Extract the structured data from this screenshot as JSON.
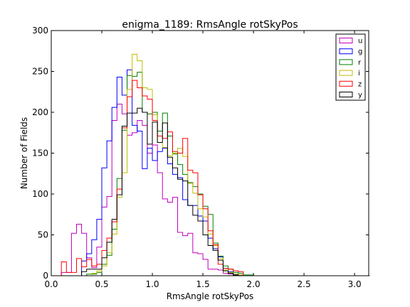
{
  "chart_data": {
    "type": "line",
    "title": "enigma_1189: RmsAngle rotSkyPos",
    "xlabel": "RmsAngle rotSkyPos",
    "ylabel": "Number of Fields",
    "xlim": [
      0.0,
      3.14
    ],
    "ylim": [
      0,
      300
    ],
    "xticks": [
      "0.0",
      "0.5",
      "1.0",
      "1.5",
      "2.0",
      "2.5",
      "3.0"
    ],
    "yticks": [
      "0",
      "50",
      "100",
      "150",
      "200",
      "250",
      "300"
    ],
    "bin_width": 0.05,
    "bin_start": 0.0,
    "legend_position": "top-right",
    "grid": false,
    "series": [
      {
        "name": "u",
        "color": "#bf00bf",
        "values": [
          0,
          0,
          4,
          4,
          52,
          63,
          52,
          22,
          10,
          35,
          84,
          97,
          190,
          210,
          198,
          172,
          175,
          190,
          184,
          150,
          160,
          126,
          94,
          90,
          96,
          53,
          49,
          52,
          28,
          27,
          20,
          8,
          8,
          7,
          3,
          2,
          1,
          1,
          0,
          0,
          0,
          0,
          0,
          0,
          0,
          0,
          0,
          0,
          0,
          0,
          0,
          0,
          0,
          0,
          0,
          0,
          0,
          0,
          0,
          0,
          0,
          0,
          0
        ]
      },
      {
        "name": "g",
        "color": "#0000ff",
        "values": [
          0,
          0,
          0,
          0,
          0,
          0,
          18,
          27,
          44,
          69,
          132,
          165,
          206,
          243,
          221,
          252,
          184,
          177,
          131,
          156,
          141,
          152,
          156,
          137,
          124,
          120,
          93,
          86,
          86,
          73,
          67,
          46,
          33,
          23,
          9,
          5,
          2,
          1,
          0,
          0,
          0,
          0,
          0,
          0,
          0,
          0,
          0,
          0,
          0,
          0,
          0,
          0,
          0,
          0,
          0,
          0,
          0,
          0,
          0,
          0,
          0,
          0,
          0
        ]
      },
      {
        "name": "r",
        "color": "#007f00",
        "values": [
          0,
          0,
          0,
          0,
          0,
          0,
          0,
          2,
          2,
          4,
          14,
          25,
          57,
          119,
          178,
          245,
          244,
          249,
          200,
          198,
          200,
          177,
          199,
          171,
          149,
          136,
          124,
          114,
          109,
          100,
          85,
          75,
          40,
          24,
          12,
          8,
          4,
          3,
          1,
          1,
          0,
          0,
          0,
          0,
          0,
          0,
          0,
          0,
          0,
          0,
          0,
          0,
          0,
          0,
          0,
          0,
          0,
          0,
          0,
          0,
          0,
          0,
          0
        ]
      },
      {
        "name": "i",
        "color": "#bfbf00",
        "values": [
          0,
          0,
          0,
          0,
          0,
          0,
          0,
          0,
          3,
          6,
          12,
          28,
          51,
          96,
          126,
          228,
          271,
          263,
          230,
          228,
          197,
          163,
          157,
          147,
          150,
          156,
          146,
          113,
          101,
          82,
          72,
          51,
          37,
          21,
          7,
          4,
          2,
          1,
          0,
          0,
          0,
          0,
          0,
          0,
          0,
          0,
          0,
          0,
          0,
          0,
          0,
          0,
          0,
          0,
          0,
          0,
          0,
          0,
          0,
          0,
          0,
          0,
          0
        ]
      },
      {
        "name": "z",
        "color": "#ff0000",
        "values": [
          0,
          0,
          17,
          4,
          4,
          21,
          11,
          20,
          12,
          14,
          31,
          46,
          66,
          106,
          181,
          219,
          239,
          230,
          220,
          216,
          190,
          171,
          168,
          176,
          152,
          150,
          168,
          129,
          126,
          99,
          82,
          55,
          38,
          14,
          9,
          8,
          6,
          5,
          0,
          0,
          0,
          0,
          0,
          0,
          0,
          0,
          0,
          0,
          0,
          0,
          0,
          0,
          0,
          0,
          0,
          0,
          0,
          0,
          0,
          0,
          0,
          0,
          0
        ]
      },
      {
        "name": "y",
        "color": "#000000",
        "values": [
          0,
          0,
          0,
          0,
          0,
          0,
          5,
          8,
          8,
          8,
          22,
          41,
          69,
          99,
          183,
          199,
          199,
          205,
          200,
          161,
          188,
          163,
          187,
          145,
          132,
          118,
          116,
          86,
          74,
          67,
          50,
          37,
          31,
          19,
          6,
          3,
          1,
          0,
          0,
          0,
          0,
          0,
          0,
          0,
          0,
          0,
          0,
          0,
          0,
          0,
          0,
          0,
          0,
          0,
          0,
          0,
          0,
          0,
          0,
          0,
          0,
          0,
          0
        ]
      }
    ]
  }
}
